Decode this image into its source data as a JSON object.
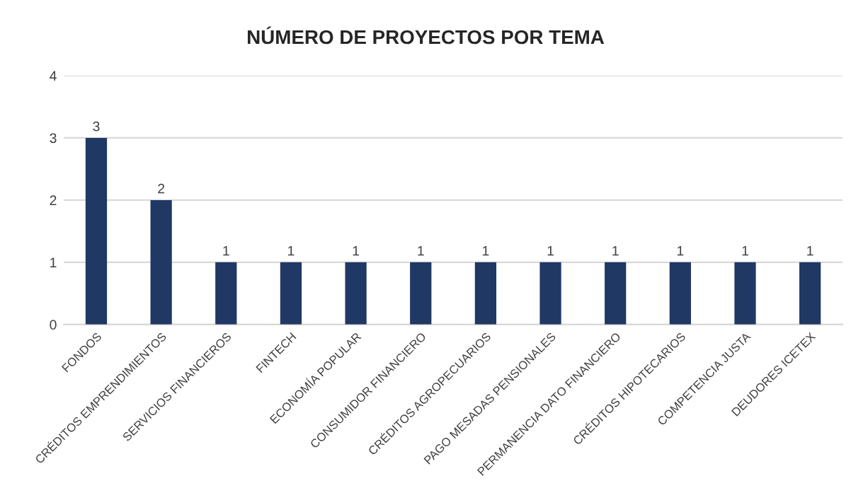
{
  "chart_data": {
    "type": "bar",
    "title": "NÚMERO DE PROYECTOS POR TEMA",
    "categories": [
      "FONDOS",
      "CRÉDITOS EMPRENDIMIENTOS",
      "SERVICIOS FINANCIEROS",
      "FINTECH",
      "ECONOMÍA POPULAR",
      "CONSUMIDOR FINANCIERO",
      "CRÉDITOS AGROPECUARIOS",
      "PAGO MESADAS PENSIONALES",
      "PERMANENCIA DATO FINANCIERO",
      "CRÉDITOS HIPOTECARIOS",
      "COMPETENCIA JUSTA",
      "DEUDORES ICETEX"
    ],
    "values": [
      3,
      2,
      1,
      1,
      1,
      1,
      1,
      1,
      1,
      1,
      1,
      1
    ],
    "color": "#203864",
    "ylim": [
      0,
      4
    ],
    "yticks": [
      0,
      1,
      2,
      3,
      4
    ],
    "grid": "y",
    "data_labels": true
  }
}
